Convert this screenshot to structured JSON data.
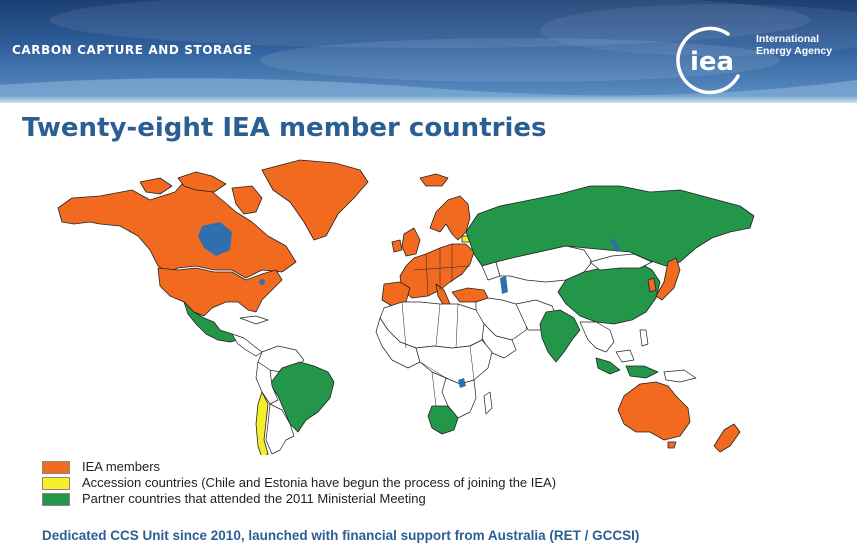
{
  "header": {
    "section_title": "CARBON CAPTURE AND STORAGE",
    "agency_logo_text": "iea",
    "agency_name_line1": "International",
    "agency_name_line2": "Energy Agency"
  },
  "slide": {
    "title": "Twenty-eight IEA member countries"
  },
  "colors": {
    "iea_members": "#f26a1f",
    "accession": "#f5ef2a",
    "partners": "#23964a",
    "other": "#ffffff",
    "water": "#2f6fb0",
    "title": "#2b5f93"
  },
  "legend": [
    {
      "key": "iea_members",
      "label": "IEA members"
    },
    {
      "key": "accession",
      "label": "Accession countries (Chile and Estonia have begun the process of joining the IEA)"
    },
    {
      "key": "partners",
      "label": "Partner countries that attended the 2011 Ministerial Meeting"
    }
  ],
  "footer": {
    "note": "Dedicated CCS Unit since 2010, launched with financial support from Australia (RET / GCCSI)"
  }
}
